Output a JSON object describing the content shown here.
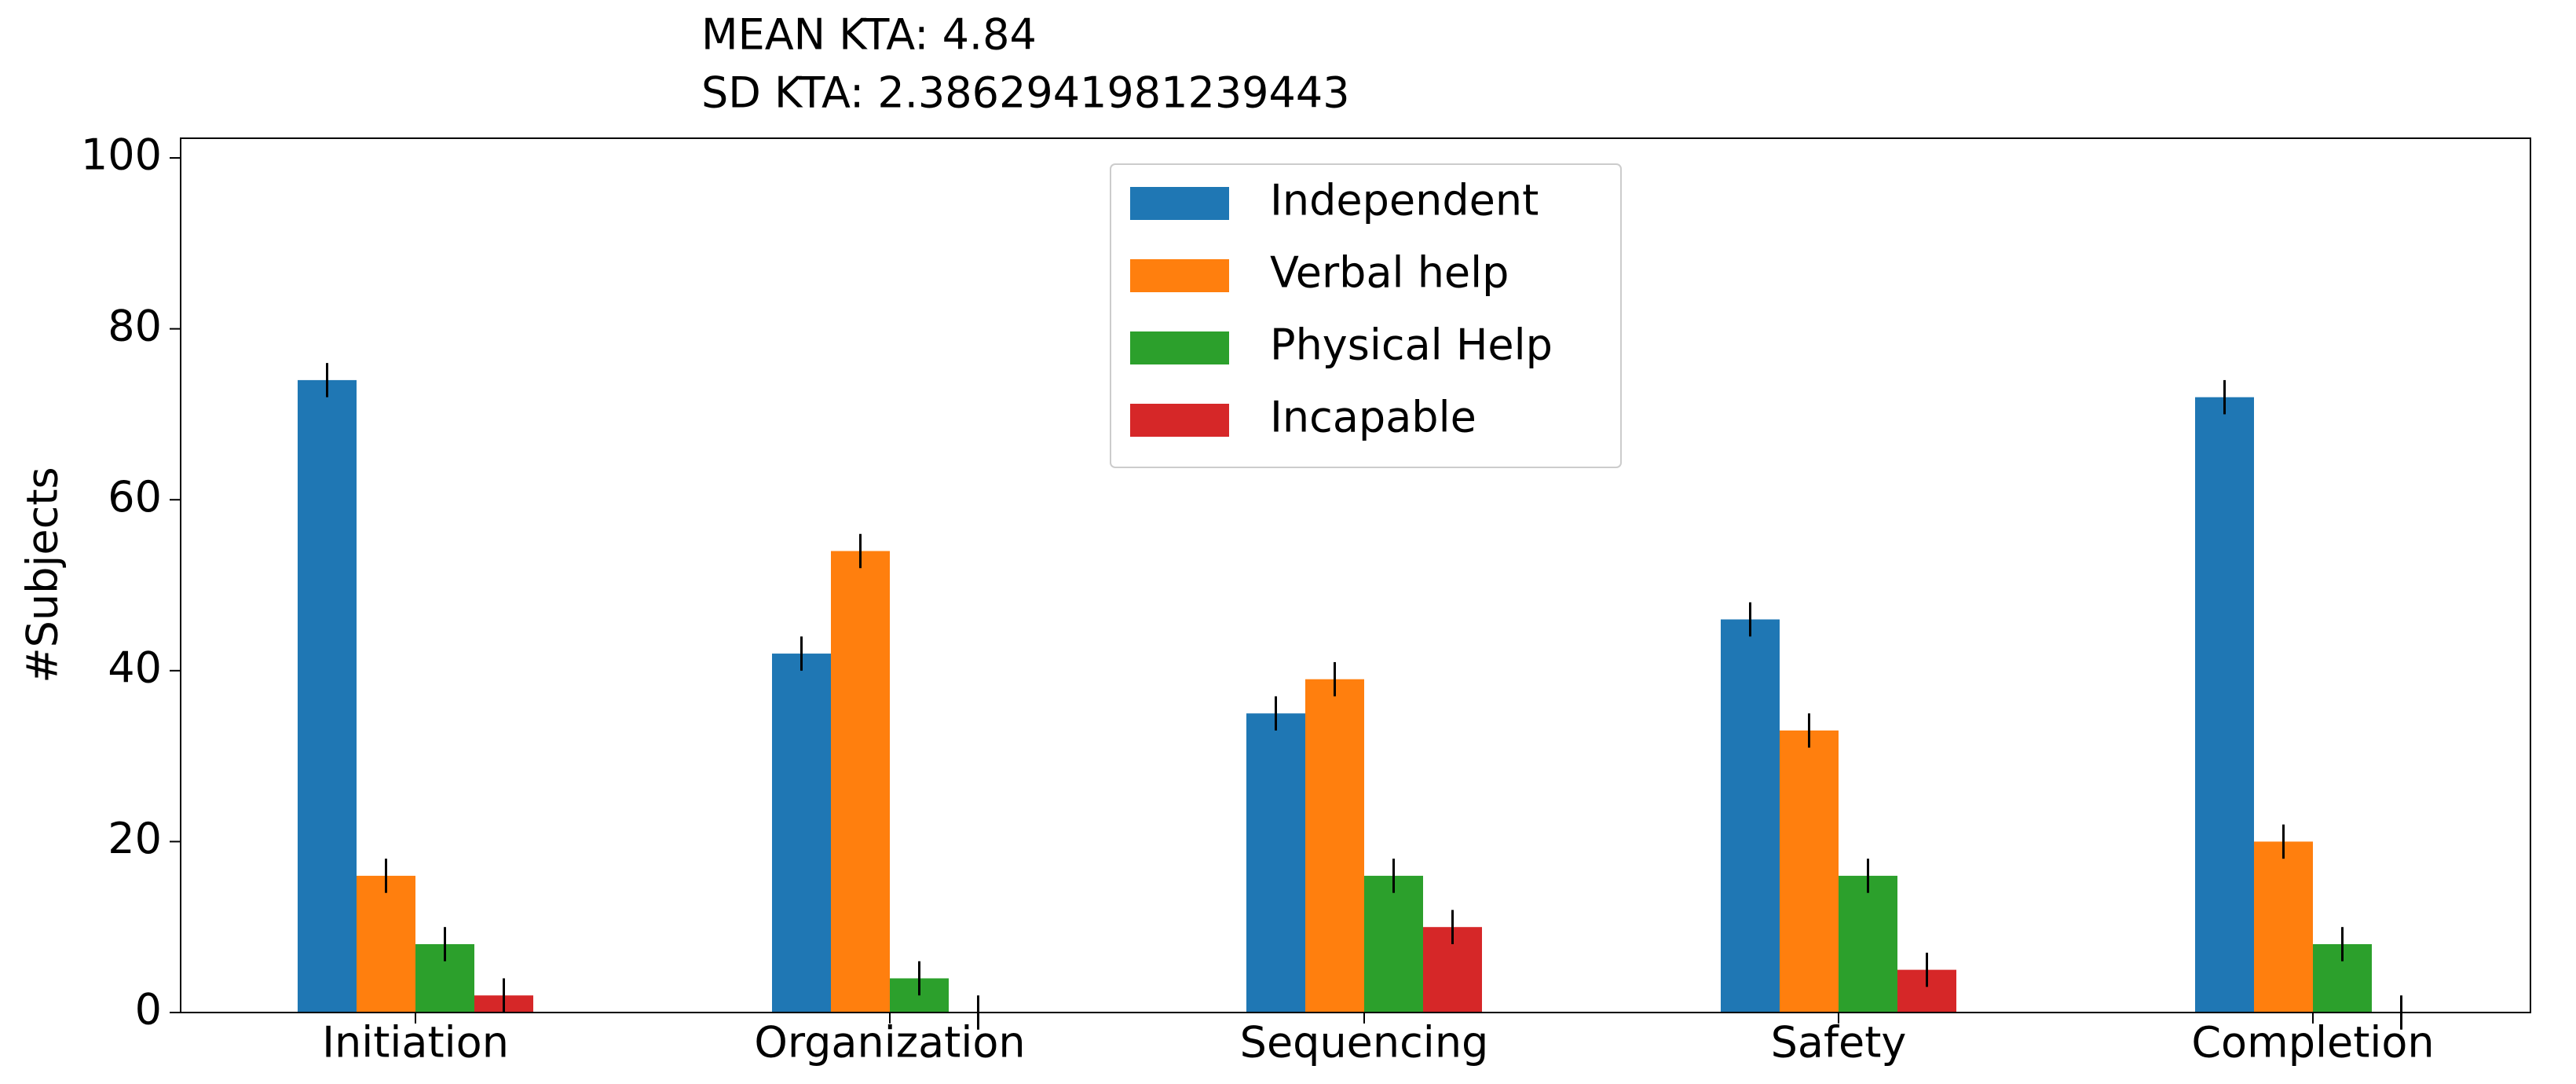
{
  "chart_data": {
    "type": "bar",
    "title": [
      "MEAN KTA: 4.84",
      "SD KTA: 2.3862941981239443"
    ],
    "y_label": "#Subjects",
    "categories": [
      "Initiation",
      "Organization",
      "Sequencing",
      "Safety",
      "Completion"
    ],
    "series": [
      {
        "name": "Independent",
        "color": "#1f77b4",
        "values": [
          74,
          42,
          35,
          46,
          72
        ],
        "errors": [
          2,
          2,
          2,
          2,
          2
        ]
      },
      {
        "name": "Verbal help",
        "color": "#ff7f0e",
        "values": [
          16,
          54,
          39,
          33,
          20
        ],
        "errors": [
          2,
          2,
          2,
          2,
          2
        ]
      },
      {
        "name": "Physical Help",
        "color": "#2ca02c",
        "values": [
          8,
          4,
          16,
          16,
          8
        ],
        "errors": [
          2,
          2,
          2,
          2,
          2
        ]
      },
      {
        "name": "Incapable",
        "color": "#d62728",
        "values": [
          2,
          0,
          10,
          5,
          0
        ],
        "errors": [
          2,
          2,
          2,
          2,
          2
        ]
      }
    ],
    "ylim": [
      0,
      102.3
    ],
    "yticks": [
      0,
      20,
      40,
      60,
      80,
      100
    ],
    "legend": "upper center"
  }
}
